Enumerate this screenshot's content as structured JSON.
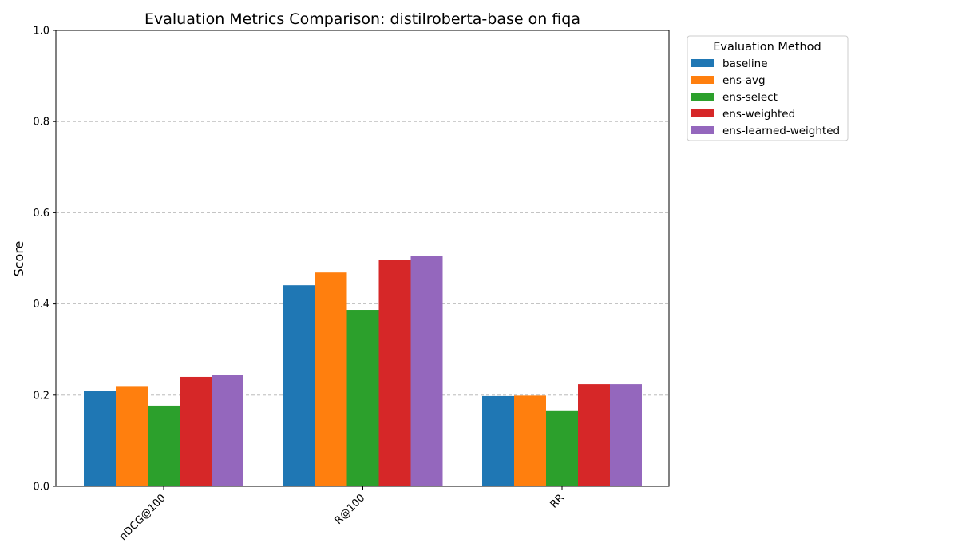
{
  "chart_data": {
    "type": "bar",
    "title": "Evaluation Metrics Comparison: distilroberta-base on fiqa",
    "xlabel": "",
    "ylabel": "Score",
    "ylim": [
      0,
      1.0
    ],
    "yticks": [
      "0.0",
      "0.2",
      "0.4",
      "0.6",
      "0.8",
      "1.0"
    ],
    "grid": "y-dashed",
    "categories": [
      "nDCG@100",
      "R@100",
      "RR"
    ],
    "legend": {
      "title": "Evaluation Method",
      "placement": "outside-top-right"
    },
    "series": [
      {
        "name": "baseline",
        "color": "#1f77b4",
        "values": [
          0.21,
          0.441,
          0.198
        ]
      },
      {
        "name": "ens-avg",
        "color": "#ff7f0e",
        "values": [
          0.22,
          0.469,
          0.199
        ]
      },
      {
        "name": "ens-select",
        "color": "#2ca02c",
        "values": [
          0.177,
          0.387,
          0.165
        ]
      },
      {
        "name": "ens-weighted",
        "color": "#d62728",
        "values": [
          0.24,
          0.497,
          0.224
        ]
      },
      {
        "name": "ens-learned-weighted",
        "color": "#9467bd",
        "values": [
          0.245,
          0.506,
          0.224
        ]
      }
    ]
  }
}
